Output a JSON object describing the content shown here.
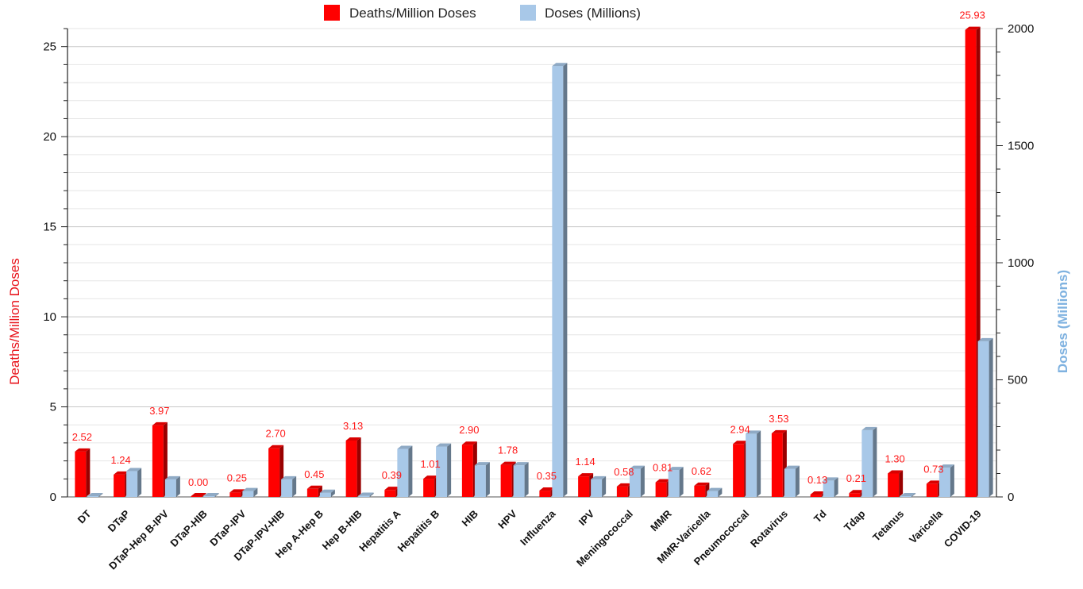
{
  "chart_data": {
    "type": "bar",
    "categories": [
      "DT",
      "DTaP",
      "DTaP-Hep B-IPV",
      "DTaP-HIB",
      "DTaP-IPV",
      "DTaP-IPV-HIB",
      "Hep A-Hep B",
      "Hep B-HIB",
      "Hepatitis A",
      "Hepatitis B",
      "HIB",
      "HPV",
      "Influenza",
      "IPV",
      "Meningococcal",
      "MMR",
      "MMR-Varicella",
      "Pneumococcal",
      "Rotavirus",
      "Td",
      "Tdap",
      "Tetanus",
      "Varicella",
      "COVID-19"
    ],
    "series": [
      {
        "name": "Deaths/Million Doses",
        "axis": "left",
        "color": "#ff0000",
        "values": [
          2.52,
          1.24,
          3.97,
          0.0,
          0.25,
          2.7,
          0.45,
          3.13,
          0.39,
          1.01,
          2.9,
          1.78,
          0.35,
          1.14,
          0.58,
          0.81,
          0.62,
          2.94,
          3.53,
          0.13,
          0.21,
          1.3,
          0.73,
          25.93
        ],
        "labels": [
          "2.52",
          "1.24",
          "3.97",
          "0.00",
          "0.25",
          "2.70",
          "0.45",
          "3.13",
          "0.39",
          "1.01",
          "2.90",
          "1.78",
          "0.35",
          "1.14",
          "0.58",
          "0.81",
          "0.62",
          "2.94",
          "3.53",
          "0.13",
          "0.21",
          "1.30",
          "0.73",
          "25.93"
        ]
      },
      {
        "name": "Doses (Millions)",
        "axis": "right",
        "color": "#a8c8e8",
        "values": [
          2,
          110,
          75,
          3,
          25,
          75,
          18,
          5,
          205,
          215,
          135,
          135,
          1840,
          75,
          120,
          115,
          25,
          270,
          120,
          70,
          285,
          3,
          125,
          665
        ]
      }
    ],
    "title": "",
    "xlabel": "",
    "ylabel_left": "Deaths/Million Doses",
    "ylabel_right": "Doses (Millions)",
    "ylim_left": [
      0,
      26
    ],
    "yticks_left": [
      "0",
      "5",
      "10",
      "15",
      "20",
      "25"
    ],
    "ylim_right": [
      0,
      2000
    ],
    "yticks_right": [
      "0",
      "500",
      "1000",
      "1500",
      "2000"
    ],
    "legend_position": "top-center",
    "grid": true
  }
}
